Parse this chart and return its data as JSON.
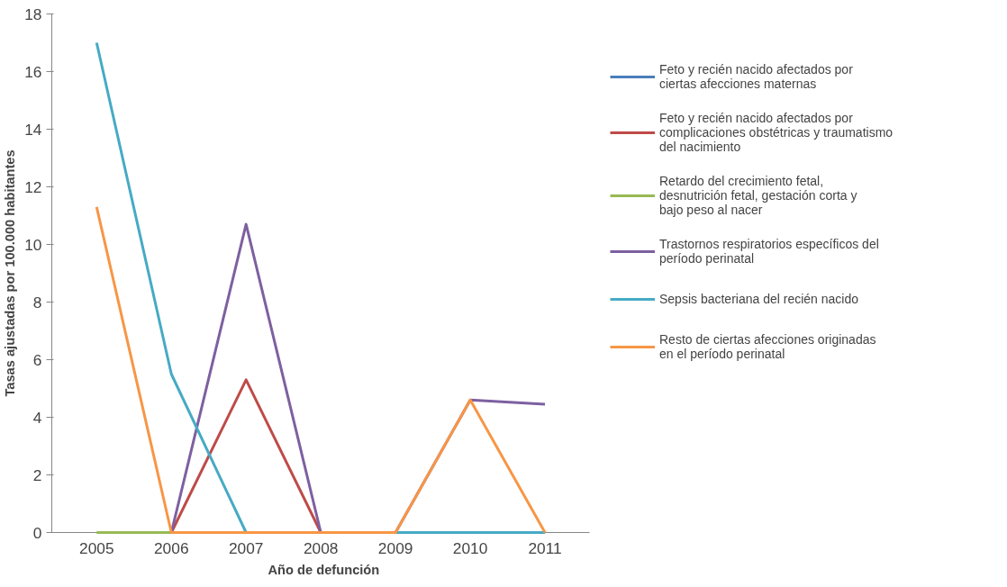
{
  "chart_data": {
    "type": "line",
    "xlabel": "Año de defunción",
    "ylabel": "Tasas ajustadas por 100.000 habitantes",
    "categories": [
      "2005",
      "2006",
      "2007",
      "2008",
      "2009",
      "2010",
      "2011"
    ],
    "ylim": [
      0,
      18
    ],
    "yticks": [
      0,
      2,
      4,
      6,
      8,
      10,
      12,
      14,
      16,
      18
    ],
    "grid": false,
    "legend": "right",
    "marker": "none",
    "line_style": "solid",
    "series": [
      {
        "name": "Feto y recién nacido afectados por ciertas afecciones maternas",
        "color": "#4a7ebb",
        "values": [
          null,
          null,
          null,
          null,
          null,
          null,
          null
        ]
      },
      {
        "name": "Feto y recién nacido afectados por complicaciones obstétricas y traumatismo del nacimiento",
        "color": "#be4b48",
        "values": [
          null,
          0,
          5.3,
          0,
          null,
          null,
          null
        ]
      },
      {
        "name": "Retardo del crecimiento fetal, desnutrición fetal, gestación corta y bajo peso al nacer",
        "color": "#98b954",
        "values": [
          0,
          0,
          null,
          null,
          null,
          null,
          null
        ]
      },
      {
        "name": "Trastornos respiratorios específicos del período perinatal",
        "color": "#7d60a0",
        "values": [
          null,
          0,
          10.7,
          0,
          0,
          4.6,
          4.45
        ]
      },
      {
        "name": "Sepsis bacteriana del recién nacido",
        "color": "#46aac5",
        "values": [
          17,
          5.5,
          0,
          0,
          0,
          0,
          0
        ]
      },
      {
        "name": "Resto de ciertas afecciones originadas en el período perinatal",
        "color": "#f79646",
        "values": [
          11.3,
          0,
          0,
          0,
          0,
          4.6,
          0
        ]
      }
    ]
  }
}
